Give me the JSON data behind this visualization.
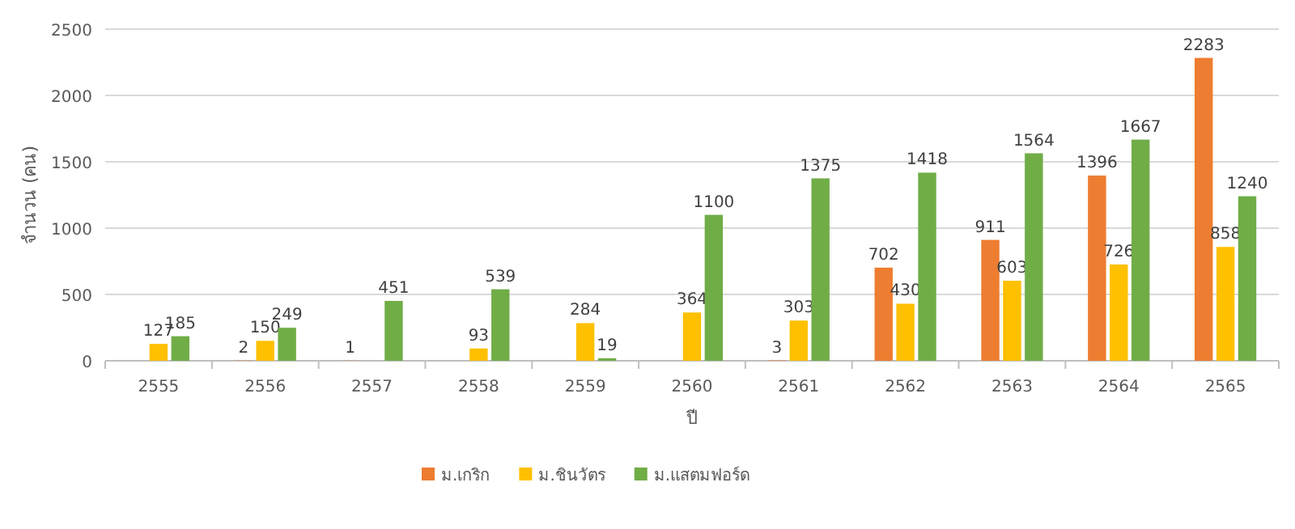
{
  "chart_data": {
    "type": "bar",
    "xlabel": "ปี",
    "ylabel": "จำนวน (คน)",
    "categories": [
      "2555",
      "2556",
      "2557",
      "2558",
      "2559",
      "2560",
      "2561",
      "2562",
      "2563",
      "2564",
      "2565"
    ],
    "series": [
      {
        "name": "ม.เกริก",
        "color": "#ed7d31",
        "values": [
          null,
          2,
          1,
          null,
          null,
          null,
          3,
          702,
          911,
          1396,
          2283
        ]
      },
      {
        "name": "ม.ชินวัตร",
        "color": "#ffc000",
        "values": [
          127,
          150,
          null,
          93,
          284,
          364,
          303,
          430,
          603,
          726,
          858
        ]
      },
      {
        "name": "ม.แสตมฟอร์ด",
        "color": "#70ad47",
        "values": [
          185,
          249,
          451,
          539,
          19,
          1100,
          1375,
          1418,
          1564,
          1667,
          1240
        ]
      }
    ],
    "ylim": [
      0,
      2500
    ],
    "yticks": [
      0,
      500,
      1000,
      1500,
      2000,
      2500
    ],
    "grid": "y",
    "legend": "bottom",
    "data_labels": true
  }
}
